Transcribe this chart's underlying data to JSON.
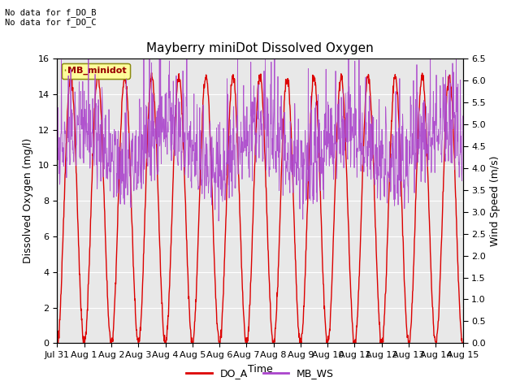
{
  "title": "Mayberry miniDot Dissolved Oxygen",
  "xlabel": "Time",
  "ylabel_left": "Dissolved Oxygen (mg/l)",
  "ylabel_right": "Wind Speed (m/s)",
  "top_left_text": "No data for f_DO_B\nNo data for f_DO_C",
  "legend_box_text": "MB_minidot",
  "legend_box_color": "#ffff99",
  "legend_box_text_color": "#990000",
  "do_color": "#dd0000",
  "ws_color": "#aa44cc",
  "ylim_left": [
    0,
    16
  ],
  "ylim_right": [
    0.0,
    6.5
  ],
  "yticks_left": [
    0,
    2,
    4,
    6,
    8,
    10,
    12,
    14,
    16
  ],
  "yticks_right": [
    0.0,
    0.5,
    1.0,
    1.5,
    2.0,
    2.5,
    3.0,
    3.5,
    4.0,
    4.5,
    5.0,
    5.5,
    6.0,
    6.5
  ],
  "xtick_labels": [
    "Jul 31",
    "Aug 1",
    "Aug 2",
    "Aug 3",
    "Aug 4",
    "Aug 5",
    "Aug 6",
    "Aug 7",
    "Aug 8",
    "Aug 9",
    "Aug 10",
    "Aug 11",
    "Aug 12",
    "Aug 13",
    "Aug 14",
    "Aug 15"
  ],
  "background_color": "#e8e8e8",
  "fig_background": "#ffffff",
  "do_linewidth": 1.0,
  "ws_linewidth": 0.6,
  "legend_items": [
    "DO_A",
    "MB_WS"
  ],
  "legend_colors": [
    "#dd0000",
    "#aa44cc"
  ],
  "figsize": [
    6.4,
    4.8
  ],
  "dpi": 100
}
